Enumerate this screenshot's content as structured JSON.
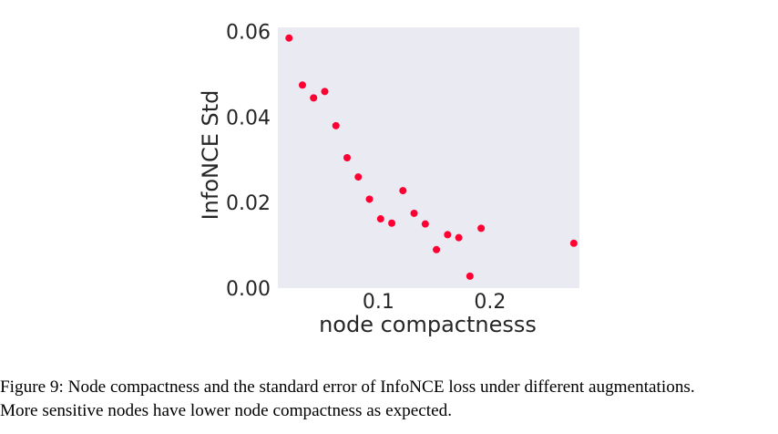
{
  "chart_data": {
    "type": "scatter",
    "title": "",
    "xlabel": "node compactnesss",
    "ylabel": "InfoNCE Std",
    "xlim": [
      0.01,
      0.28
    ],
    "ylim": [
      0.0,
      0.061
    ],
    "xticks": [
      0.1,
      0.2
    ],
    "xtick_labels": [
      "0.1",
      "0.2"
    ],
    "yticks": [
      0.0,
      0.02,
      0.04,
      0.06
    ],
    "ytick_labels": [
      "0.00",
      "0.02",
      "0.04",
      "0.06"
    ],
    "grid": false,
    "background": "#eaeaf2",
    "point_color": "#ff0033",
    "x": [
      0.02,
      0.032,
      0.042,
      0.052,
      0.062,
      0.072,
      0.082,
      0.092,
      0.102,
      0.112,
      0.122,
      0.132,
      0.142,
      0.152,
      0.162,
      0.172,
      0.182,
      0.192,
      0.275
    ],
    "y": [
      0.0585,
      0.0475,
      0.0445,
      0.046,
      0.038,
      0.0305,
      0.026,
      0.0208,
      0.0162,
      0.0152,
      0.0228,
      0.0175,
      0.015,
      0.009,
      0.0125,
      0.0118,
      0.0028,
      0.014,
      0.0105
    ]
  },
  "caption": {
    "line1": "Figure 9: Node compactness and the standard error of InfoNCE loss under different augmentations.",
    "line2": "More sensitive nodes have lower node compactness as expected."
  }
}
